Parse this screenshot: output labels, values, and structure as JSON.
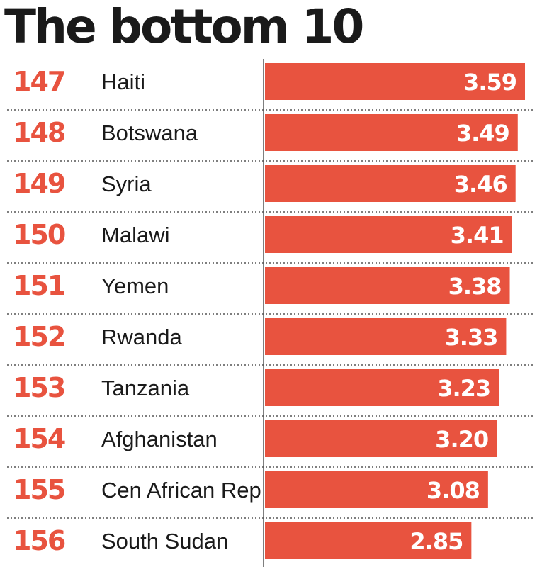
{
  "colors": {
    "bar": "#e8533f",
    "rank": "#e8533f",
    "text": "#1a1a1a",
    "value_label": "#ffffff",
    "divider": "#555555"
  },
  "chart_data": {
    "type": "bar",
    "orientation": "horizontal",
    "title": "The bottom 10",
    "ranks": [
      "147",
      "148",
      "149",
      "150",
      "151",
      "152",
      "153",
      "154",
      "155",
      "156"
    ],
    "categories": [
      "Haiti",
      "Botswana",
      "Syria",
      "Malawi",
      "Yemen",
      "Rwanda",
      "Tanzania",
      "Afghanistan",
      "Cen African Rep",
      "South Sudan"
    ],
    "values": [
      3.59,
      3.49,
      3.46,
      3.41,
      3.38,
      3.33,
      3.23,
      3.2,
      3.08,
      2.85
    ],
    "value_labels": [
      "3.59",
      "3.49",
      "3.46",
      "3.41",
      "3.38",
      "3.33",
      "3.23",
      "3.20",
      "3.08",
      "2.85"
    ],
    "xlim": [
      0,
      3.59
    ],
    "grid": false,
    "legend": "none"
  }
}
